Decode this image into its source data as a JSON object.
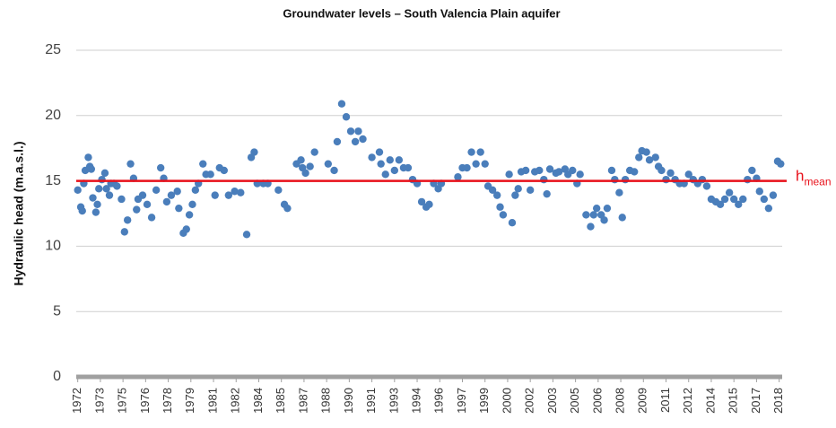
{
  "chart_data": {
    "type": "scatter",
    "title": "Groundwater levels – South Valencia Plain aquifer",
    "y_label": "Hydraulic head (m.a.s.l.)",
    "color": "#4a7ebb",
    "grid": true,
    "xlim": [
      1971.9,
      2018.7
    ],
    "xticks": [
      {
        "value": 1972,
        "label": "1972"
      },
      {
        "value": 1973.5,
        "label": "1973"
      },
      {
        "value": 1975,
        "label": "1975"
      },
      {
        "value": 1976.5,
        "label": "1976"
      },
      {
        "value": 1978,
        "label": "1978"
      },
      {
        "value": 1979.5,
        "label": "1979"
      },
      {
        "value": 1981,
        "label": "1981"
      },
      {
        "value": 1982.5,
        "label": "1982"
      },
      {
        "value": 1984,
        "label": "1984"
      },
      {
        "value": 1985.5,
        "label": "1985"
      },
      {
        "value": 1987,
        "label": "1987"
      },
      {
        "value": 1988.5,
        "label": "1988"
      },
      {
        "value": 1990,
        "label": "1990"
      },
      {
        "value": 1991.5,
        "label": "1991"
      },
      {
        "value": 1993,
        "label": "1993"
      },
      {
        "value": 1994.5,
        "label": "1994"
      },
      {
        "value": 1996,
        "label": "1996"
      },
      {
        "value": 1997.5,
        "label": "1997"
      },
      {
        "value": 1999,
        "label": "1999"
      },
      {
        "value": 2000.5,
        "label": "2000"
      },
      {
        "value": 2002,
        "label": "2002"
      },
      {
        "value": 2003.5,
        "label": "2003"
      },
      {
        "value": 2005,
        "label": "2005"
      },
      {
        "value": 2006.5,
        "label": "2006"
      },
      {
        "value": 2008,
        "label": "2008"
      },
      {
        "value": 2009.5,
        "label": "2009"
      },
      {
        "value": 2011,
        "label": "2011"
      },
      {
        "value": 2012.5,
        "label": "2012"
      },
      {
        "value": 2014,
        "label": "2014"
      },
      {
        "value": 2015.5,
        "label": "2015"
      },
      {
        "value": 2017,
        "label": "2017"
      },
      {
        "value": 2018.5,
        "label": "2018"
      }
    ],
    "ylim": [
      0,
      25
    ],
    "yticks": [
      0,
      5,
      10,
      15,
      20,
      25
    ],
    "mean_line": {
      "value": 15,
      "label": "h",
      "subscript": "mean",
      "color": "#e8101a"
    },
    "x": [
      1972.0,
      1972.2,
      1972.3,
      1972.4,
      1972.5,
      1972.7,
      1972.8,
      1972.9,
      1973.0,
      1973.2,
      1973.3,
      1973.4,
      1973.6,
      1973.8,
      1973.9,
      1974.1,
      1974.2,
      1974.4,
      1974.6,
      1974.9,
      1975.1,
      1975.3,
      1975.5,
      1975.7,
      1975.9,
      1976.0,
      1976.3,
      1976.6,
      1976.9,
      1977.2,
      1977.5,
      1977.7,
      1977.9,
      1978.2,
      1978.6,
      1978.7,
      1979.0,
      1979.2,
      1979.4,
      1979.6,
      1979.8,
      1980.0,
      1980.3,
      1980.5,
      1980.8,
      1981.1,
      1981.4,
      1981.7,
      1982.0,
      1982.4,
      1982.8,
      1983.2,
      1983.5,
      1983.7,
      1983.9,
      1984.3,
      1984.6,
      1985.3,
      1985.7,
      1985.9,
      1986.5,
      1986.8,
      1986.9,
      1987.1,
      1987.4,
      1987.7,
      1988.6,
      1989.0,
      1989.2,
      1989.5,
      1989.8,
      1990.1,
      1990.4,
      1990.6,
      1990.9,
      1991.5,
      1992.0,
      1992.1,
      1992.4,
      1992.7,
      1993.0,
      1993.3,
      1993.6,
      1993.9,
      1994.2,
      1994.5,
      1994.8,
      1995.1,
      1995.3,
      1995.6,
      1995.9,
      1996.1,
      1997.2,
      1997.5,
      1997.8,
      1998.1,
      1998.4,
      1998.7,
      1999.0,
      1999.2,
      1999.5,
      1999.8,
      2000.0,
      2000.2,
      2000.6,
      2000.8,
      2001.0,
      2001.2,
      2001.4,
      2001.7,
      2002.0,
      2002.3,
      2002.6,
      2002.9,
      2003.1,
      2003.3,
      2003.7,
      2003.9,
      2004.3,
      2004.5,
      2004.8,
      2005.1,
      2005.3,
      2005.7,
      2006.0,
      2006.2,
      2006.4,
      2006.7,
      2006.9,
      2007.1,
      2007.4,
      2007.6,
      2007.9,
      2008.1,
      2008.3,
      2008.6,
      2008.9,
      2009.2,
      2009.4,
      2009.7,
      2009.9,
      2010.3,
      2010.5,
      2010.7,
      2011.0,
      2011.3,
      2011.6,
      2011.9,
      2012.2,
      2012.5,
      2012.8,
      2013.1,
      2013.4,
      2013.7,
      2014.0,
      2014.3,
      2014.6,
      2014.9,
      2015.2,
      2015.5,
      2015.8,
      2016.1,
      2016.4,
      2016.7,
      2017.0,
      2017.2,
      2017.5,
      2017.8,
      2018.1,
      2018.4,
      2018.6
    ],
    "values": [
      14.3,
      13.0,
      12.7,
      14.8,
      15.8,
      16.8,
      16.1,
      15.9,
      13.7,
      12.6,
      13.2,
      14.4,
      15.1,
      15.6,
      14.4,
      13.9,
      14.8,
      14.8,
      14.6,
      13.6,
      11.1,
      12.0,
      16.3,
      15.2,
      12.8,
      13.6,
      13.9,
      13.2,
      12.2,
      14.3,
      16.0,
      15.2,
      13.4,
      13.9,
      14.2,
      12.9,
      11.0,
      11.3,
      12.4,
      13.2,
      14.3,
      14.8,
      16.3,
      15.5,
      15.5,
      13.9,
      16.0,
      15.8,
      13.9,
      14.2,
      14.1,
      10.9,
      16.8,
      17.2,
      14.8,
      14.8,
      14.8,
      14.3,
      13.2,
      12.9,
      16.3,
      16.6,
      16.0,
      15.6,
      16.1,
      17.2,
      16.3,
      15.8,
      18.0,
      20.9,
      19.9,
      18.8,
      18.0,
      18.8,
      18.2,
      16.8,
      17.2,
      16.3,
      15.5,
      16.6,
      15.8,
      16.6,
      16.0,
      16.0,
      15.1,
      14.8,
      13.4,
      13.0,
      13.2,
      14.8,
      14.4,
      14.8,
      15.3,
      16.0,
      16.0,
      17.2,
      16.3,
      17.2,
      16.3,
      14.6,
      14.3,
      13.9,
      13.0,
      12.4,
      15.5,
      11.8,
      13.9,
      14.4,
      15.7,
      15.8,
      14.3,
      15.7,
      15.8,
      15.1,
      14.0,
      15.9,
      15.6,
      15.7,
      15.9,
      15.5,
      15.8,
      14.8,
      15.5,
      12.4,
      11.5,
      12.4,
      12.9,
      12.4,
      12.0,
      12.9,
      15.8,
      15.1,
      14.1,
      12.2,
      15.1,
      15.8,
      15.7,
      16.8,
      17.3,
      17.2,
      16.6,
      16.8,
      16.1,
      15.8,
      15.1,
      15.6,
      15.1,
      14.8,
      14.8,
      15.5,
      15.1,
      14.8,
      15.1,
      14.6,
      13.6,
      13.4,
      13.2,
      13.6,
      14.1,
      13.6,
      13.2,
      13.6,
      15.1,
      15.8,
      15.2,
      14.2,
      13.6,
      12.9,
      13.9,
      16.5,
      16.3
    ]
  }
}
